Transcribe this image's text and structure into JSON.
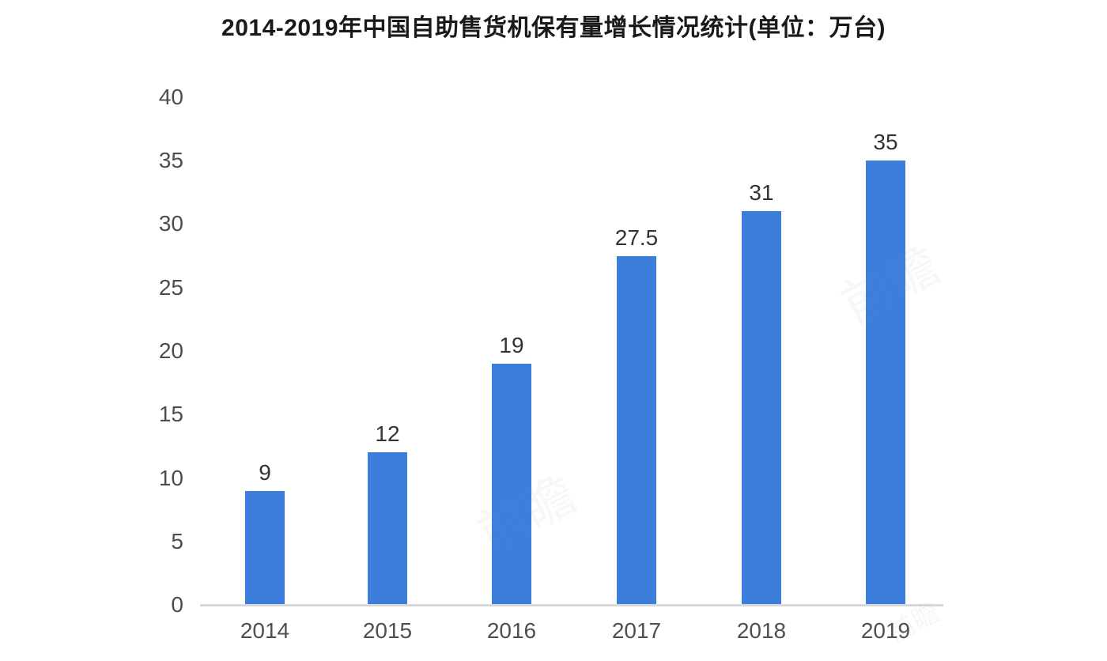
{
  "title": "2014-2019年中国自助售货机保有量增长情况统计(单位：万台)",
  "watermark": {
    "text": "前瞻"
  },
  "colors": {
    "bar": "#3d7edc",
    "axis_line": "#d8d8d8",
    "tick_label": "#4d4d4d",
    "value_label": "#333333",
    "title": "#1a1a1a"
  },
  "chart_data": {
    "type": "bar",
    "title": "2014-2019年中国自助售货机保有量增长情况统计(单位：万台)",
    "categories": [
      "2014",
      "2015",
      "2016",
      "2017",
      "2018",
      "2019"
    ],
    "values": [
      9,
      12,
      19,
      27.5,
      31,
      35
    ],
    "values_text": [
      "9",
      "12",
      "19",
      "27.5",
      "31",
      "35"
    ],
    "unit": "万台",
    "xlabel": "",
    "ylabel": "",
    "ylim": [
      0,
      40
    ],
    "yticks": [
      0,
      5,
      10,
      15,
      20,
      25,
      30,
      35,
      40
    ],
    "grid": false,
    "legend_position": "none",
    "bar_color": "#3d7edc"
  }
}
